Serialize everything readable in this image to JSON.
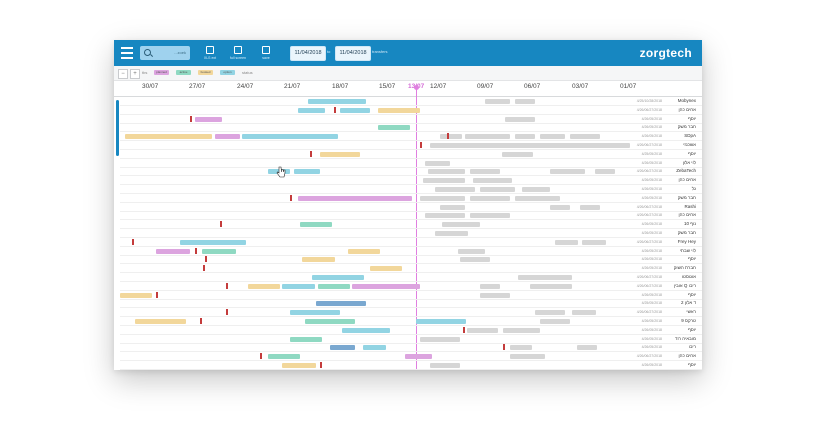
{
  "header": {
    "logo": "zorgtech",
    "search_placeholder": "...zoek",
    "date_from": "11/04/2018",
    "date_to": "11/04/2018",
    "date_separator": "to",
    "date_label": "transfers",
    "buttons": [
      {
        "icon": "excel-export-icon",
        "label": "XLS ext"
      },
      {
        "icon": "fullscreen-icon",
        "label": "full screen"
      },
      {
        "icon": "save-icon",
        "label": "save"
      }
    ]
  },
  "legend": {
    "zoom_out": "−",
    "zoom_in": "+",
    "zoom_label": "tbs",
    "title": "status",
    "chips": [
      "planned",
      "active",
      "booked",
      "option"
    ]
  },
  "timeline": {
    "today_label": "13/07",
    "ticks": [
      "30/07",
      "27/07",
      "24/07",
      "21/07",
      "18/07",
      "15/07",
      "12/07",
      "09/07",
      "06/07",
      "03/07",
      "01/07"
    ]
  },
  "rows": [
    {
      "name": "Mobynex",
      "date": "4/25/10/28/2018",
      "bars": [
        [
          188,
          246,
          "cyan"
        ],
        [
          365,
          390,
          "grey"
        ],
        [
          395,
          415,
          "grey"
        ]
      ]
    },
    {
      "name": "אחים כהן",
      "date": "4/26/06/27/2018",
      "bars": [
        [
          178,
          205,
          "cyan"
        ],
        [
          220,
          250,
          "cyan"
        ],
        [
          258,
          300,
          "yellow"
        ]
      ],
      "marks": [
        214
      ]
    },
    {
      "name": "יוסף",
      "date": "4/26/05/2018",
      "bars": [
        [
          75,
          102,
          "pink"
        ],
        [
          385,
          415,
          "grey"
        ]
      ],
      "marks": [
        70
      ]
    },
    {
      "name": "חבר משק",
      "date": "4/26/05/2018",
      "bars": [
        [
          258,
          290,
          "green"
        ]
      ]
    },
    {
      "name": "SDpA",
      "date": "4/26/05/2018",
      "bars": [
        [
          5,
          92,
          "yellow"
        ],
        [
          95,
          120,
          "pink"
        ],
        [
          122,
          218,
          "cyan"
        ],
        [
          320,
          342,
          "grey"
        ],
        [
          345,
          390,
          "grey"
        ],
        [
          395,
          415,
          "grey"
        ],
        [
          420,
          445,
          "grey"
        ],
        [
          450,
          480,
          "grey"
        ]
      ],
      "marks": [
        327
      ]
    },
    {
      "name": "אשכנזי",
      "date": "4/26/06/27/2018",
      "bars": [
        [
          310,
          510,
          "grey"
        ]
      ],
      "marks": [
        300
      ]
    },
    {
      "name": "יוסף",
      "date": "4/25/05/2018",
      "bars": [
        [
          200,
          240,
          "yellow"
        ],
        [
          382,
          413,
          "grey"
        ]
      ],
      "marks": [
        190
      ]
    },
    {
      "name": "לוי אלון",
      "date": "4/26/05/2018",
      "bars": [
        [
          305,
          330,
          "grey"
        ]
      ]
    },
    {
      "name": "ZebaTech",
      "date": "4/26/06/27/2018",
      "bars": [
        [
          148,
          170,
          "cyan"
        ],
        [
          174,
          200,
          "cyan"
        ],
        [
          308,
          345,
          "grey"
        ],
        [
          350,
          380,
          "grey"
        ],
        [
          430,
          465,
          "grey"
        ],
        [
          475,
          495,
          "grey"
        ]
      ]
    },
    {
      "name": "אחים כהן",
      "date": "4/26/05/2018",
      "bars": [
        [
          303,
          345,
          "grey"
        ],
        [
          353,
          392,
          "grey"
        ]
      ]
    },
    {
      "name": "גל",
      "date": "4/26/05/2018",
      "bars": [
        [
          315,
          355,
          "grey"
        ],
        [
          360,
          395,
          "grey"
        ],
        [
          402,
          430,
          "grey"
        ]
      ]
    },
    {
      "name": "חבר משק",
      "date": "4/26/05/2018",
      "bars": [
        [
          178,
          292,
          "pink"
        ],
        [
          300,
          345,
          "grey"
        ],
        [
          350,
          390,
          "grey"
        ],
        [
          395,
          440,
          "grey"
        ]
      ],
      "marks": [
        170
      ]
    },
    {
      "name": "Rashi",
      "date": "4/26/06/27/2018",
      "bars": [
        [
          320,
          345,
          "grey"
        ],
        [
          430,
          450,
          "grey"
        ],
        [
          460,
          480,
          "grey"
        ]
      ]
    },
    {
      "name": "אחים כהן",
      "date": "4/26/06/27/2018",
      "bars": [
        [
          305,
          345,
          "grey"
        ],
        [
          350,
          390,
          "grey"
        ]
      ]
    },
    {
      "name": "נוף 10",
      "date": "4/26/05/2018",
      "bars": [
        [
          180,
          212,
          "green"
        ],
        [
          322,
          360,
          "grey"
        ]
      ],
      "marks": [
        100
      ]
    },
    {
      "name": "חבר משק",
      "date": "4/26/05/2018",
      "bars": [
        [
          315,
          348,
          "grey"
        ]
      ]
    },
    {
      "name": "Frey Hey",
      "date": "4/26/06/27/2018",
      "bars": [
        [
          60,
          126,
          "cyan"
        ],
        [
          435,
          458,
          "grey"
        ],
        [
          462,
          486,
          "grey"
        ]
      ],
      "marks": [
        12
      ]
    },
    {
      "name": "לוי שבתי",
      "date": "4/26/05/2018",
      "bars": [
        [
          36,
          70,
          "pink"
        ],
        [
          82,
          116,
          "green"
        ],
        [
          228,
          260,
          "yellow"
        ],
        [
          338,
          365,
          "grey"
        ]
      ],
      "marks": [
        75
      ]
    },
    {
      "name": "יוסף",
      "date": "4/26/05/2018",
      "bars": [
        [
          182,
          215,
          "yellow"
        ],
        [
          340,
          370,
          "grey"
        ]
      ],
      "marks": [
        85
      ]
    },
    {
      "name": "חברת השוק",
      "date": "4/26/05/2018",
      "bars": [
        [
          250,
          282,
          "yellow"
        ]
      ],
      "marks": [
        83
      ]
    },
    {
      "name": "אוגוסטו",
      "date": "4/26/06/27/2018",
      "bars": [
        [
          192,
          244,
          "cyan"
        ],
        [
          398,
          452,
          "grey"
        ]
      ]
    },
    {
      "name": "ריבו Q אובין",
      "date": "4/26/06/27/2018",
      "bars": [
        [
          128,
          160,
          "yellow"
        ],
        [
          162,
          195,
          "cyan"
        ],
        [
          198,
          230,
          "green"
        ],
        [
          232,
          300,
          "pink"
        ],
        [
          360,
          380,
          "grey"
        ],
        [
          410,
          452,
          "grey"
        ]
      ],
      "marks": [
        106
      ]
    },
    {
      "name": "יוסף",
      "date": "4/26/05/2018",
      "bars": [
        [
          0,
          32,
          "yellow"
        ],
        [
          360,
          390,
          "grey"
        ]
      ],
      "marks": [
        36
      ]
    },
    {
      "name": "ד אלון 2",
      "date": "4/25/05/2018",
      "bars": [
        [
          196,
          246,
          "blue"
        ]
      ]
    },
    {
      "name": "ראשי",
      "date": "4/26/06/27/2018",
      "bars": [
        [
          170,
          220,
          "cyan"
        ],
        [
          415,
          445,
          "grey"
        ],
        [
          452,
          476,
          "grey"
        ]
      ],
      "marks": [
        106
      ]
    },
    {
      "name": "טרקס 9",
      "date": "4/26/05/2018",
      "bars": [
        [
          15,
          66,
          "yellow"
        ],
        [
          185,
          235,
          "green"
        ],
        [
          296,
          346,
          "cyan"
        ],
        [
          420,
          450,
          "grey"
        ]
      ],
      "marks": [
        80
      ]
    },
    {
      "name": "יוסף",
      "date": "4/26/05/2018",
      "bars": [
        [
          222,
          270,
          "cyan"
        ],
        [
          347,
          378,
          "grey"
        ],
        [
          383,
          420,
          "grey"
        ]
      ],
      "marks": [
        343
      ]
    },
    {
      "name": "מובאיה רוד",
      "date": "4/26/05/2018",
      "bars": [
        [
          170,
          202,
          "green"
        ],
        [
          300,
          340,
          "grey"
        ]
      ]
    },
    {
      "name": "ריבו",
      "date": "4/26/05/2018",
      "bars": [
        [
          210,
          235,
          "blue"
        ],
        [
          243,
          266,
          "cyan"
        ],
        [
          390,
          412,
          "grey"
        ],
        [
          457,
          477,
          "grey"
        ]
      ],
      "marks": [
        383
      ]
    },
    {
      "name": "אחים כהן",
      "date": "4/26/06/27/2018",
      "bars": [
        [
          148,
          180,
          "green"
        ],
        [
          285,
          312,
          "pink"
        ],
        [
          390,
          425,
          "grey"
        ]
      ],
      "marks": [
        140
      ]
    },
    {
      "name": "יוסף",
      "date": "4/26/05/2018",
      "bars": [
        [
          162,
          196,
          "yellow"
        ],
        [
          310,
          340,
          "grey"
        ]
      ],
      "marks": [
        200
      ]
    }
  ],
  "colors": {
    "cyan": "#92d4e3",
    "pink": "#dca4df",
    "yellow": "#f2d79b",
    "green": "#8fd9c2",
    "blue": "#7aa8d0",
    "grey": "#d6d6d6",
    "accent": "#1787c1",
    "today": "#e07fe0"
  }
}
